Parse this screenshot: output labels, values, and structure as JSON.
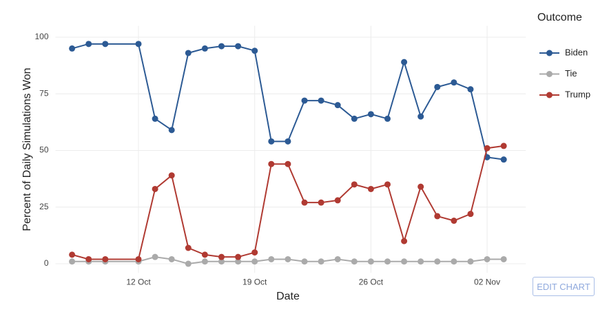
{
  "chart_data": {
    "type": "line",
    "x_label": "Date",
    "y_label": "Percent of Daily Simulations Won",
    "legend_title": "Outcome",
    "x": [
      "08 Oct",
      "09 Oct",
      "10 Oct",
      "12 Oct",
      "13 Oct",
      "14 Oct",
      "15 Oct",
      "16 Oct",
      "17 Oct",
      "18 Oct",
      "19 Oct",
      "20 Oct",
      "21 Oct",
      "22 Oct",
      "23 Oct",
      "24 Oct",
      "25 Oct",
      "26 Oct",
      "27 Oct",
      "28 Oct",
      "29 Oct",
      "30 Oct",
      "31 Oct",
      "01 Nov",
      "02 Nov",
      "03 Nov"
    ],
    "series": [
      {
        "name": "Biden",
        "color": "#2c5a94",
        "values": [
          95,
          97,
          97,
          97,
          64,
          59,
          93,
          95,
          96,
          96,
          94,
          54,
          54,
          72,
          72,
          70,
          64,
          66,
          64,
          89,
          65,
          78,
          80,
          77,
          47,
          46
        ]
      },
      {
        "name": "Tie",
        "color": "#aaaaaa",
        "values": [
          1,
          1,
          1,
          1,
          3,
          2,
          0,
          1,
          1,
          1,
          1,
          2,
          2,
          1,
          1,
          2,
          1,
          1,
          1,
          1,
          1,
          1,
          1,
          1,
          2,
          2
        ]
      },
      {
        "name": "Trump",
        "color": "#b03a32",
        "values": [
          4,
          2,
          2,
          2,
          33,
          39,
          7,
          4,
          3,
          3,
          5,
          44,
          44,
          27,
          27,
          28,
          35,
          33,
          35,
          10,
          34,
          21,
          19,
          22,
          51,
          52
        ]
      }
    ],
    "xlim": [
      "07 Oct",
      "04 Nov"
    ],
    "xticks": [
      "12 Oct",
      "19 Oct",
      "26 Oct",
      "02 Nov"
    ],
    "ylim": [
      -4,
      105
    ],
    "yticks": [
      0,
      25,
      50,
      75,
      100
    ],
    "grid": true,
    "legend": "right",
    "button": "EDIT CHART"
  }
}
